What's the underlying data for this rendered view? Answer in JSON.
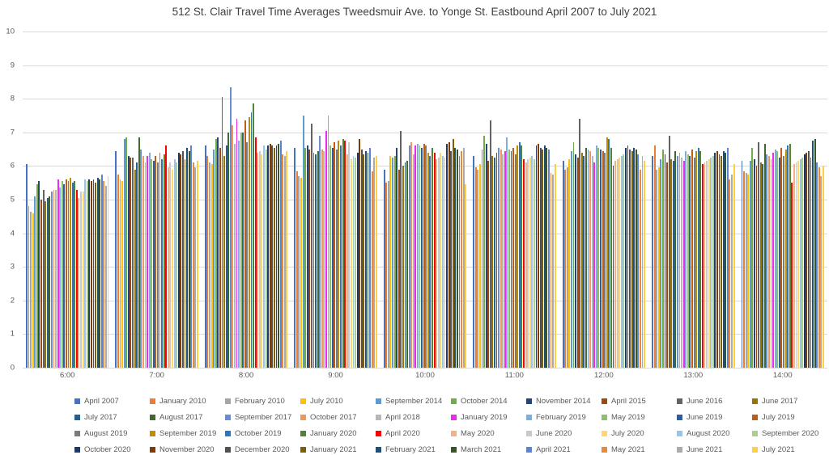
{
  "colors": {
    "background": "#ffffff",
    "gridline": "#d9d9d9",
    "axis_text": "#595959",
    "title_text": "#404040"
  },
  "chart_data": {
    "type": "bar",
    "title": "512 St. Clair Travel Time Averages Tweedsmuir Ave. to Yonge St. Eastbound April 2007 to July 2021",
    "xlabel": "",
    "ylabel": "",
    "ylim": [
      0,
      10
    ],
    "yticks": [
      0,
      1,
      2,
      3,
      4,
      5,
      6,
      7,
      8,
      9,
      10
    ],
    "grid": true,
    "legend_position": "bottom",
    "categories": [
      "6:00",
      "7:00",
      "8:00",
      "9:00",
      "10:00",
      "11:00",
      "12:00",
      "13:00",
      "14:00"
    ],
    "series": [
      {
        "name": "April 2007",
        "color": "#4472C4",
        "values": [
          6.05,
          6.45,
          6.6,
          6.55,
          5.9,
          6.3,
          6.15,
          6.3,
          6.15
        ]
      },
      {
        "name": "January 2010",
        "color": "#ED7D31",
        "values": [
          4.8,
          5.75,
          6.3,
          5.85,
          5.5,
          5.95,
          5.9,
          6.6,
          5.85
        ]
      },
      {
        "name": "February 2010",
        "color": "#A5A5A5",
        "values": [
          4.65,
          5.6,
          6.1,
          5.7,
          5.55,
          5.9,
          5.95,
          5.9,
          5.8
        ]
      },
      {
        "name": "July 2010",
        "color": "#FFC000",
        "values": [
          4.6,
          5.55,
          6.05,
          5.65,
          6.3,
          6.05,
          6.2,
          5.95,
          5.75
        ]
      },
      {
        "name": "September 2014",
        "color": "#5B9BD5",
        "values": [
          5.1,
          6.8,
          6.5,
          7.5,
          6.25,
          6.5,
          6.45,
          6.2,
          6.15
        ]
      },
      {
        "name": "October 2014",
        "color": "#70AD47",
        "values": [
          5.45,
          6.85,
          6.8,
          6.55,
          6.3,
          6.9,
          6.7,
          6.5,
          6.55
        ]
      },
      {
        "name": "November 2014",
        "color": "#264478",
        "values": [
          5.55,
          6.3,
          6.85,
          6.6,
          6.55,
          6.65,
          6.35,
          6.35,
          6.2
        ]
      },
      {
        "name": "April 2015",
        "color": "#9E480E",
        "values": [
          5.0,
          6.25,
          6.55,
          6.5,
          5.9,
          6.15,
          6.25,
          6.1,
          6.0
        ]
      },
      {
        "name": "June 2016",
        "color": "#636363",
        "values": [
          5.3,
          6.25,
          8.05,
          7.25,
          7.05,
          7.35,
          7.4,
          6.9,
          6.7
        ]
      },
      {
        "name": "June 2017",
        "color": "#997300",
        "values": [
          4.95,
          5.9,
          6.3,
          6.4,
          6.0,
          6.3,
          6.4,
          6.2,
          6.1
        ]
      },
      {
        "name": "July 2017",
        "color": "#255E91",
        "values": [
          5.05,
          6.1,
          6.6,
          6.35,
          6.1,
          6.25,
          6.3,
          6.15,
          6.05
        ]
      },
      {
        "name": "August 2017",
        "color": "#43682B",
        "values": [
          5.1,
          6.85,
          7.0,
          6.45,
          6.15,
          6.4,
          6.55,
          6.45,
          6.65
        ]
      },
      {
        "name": "September 2017",
        "color": "#698ED0",
        "values": [
          5.25,
          6.5,
          8.35,
          6.9,
          6.6,
          6.55,
          6.5,
          6.3,
          6.35
        ]
      },
      {
        "name": "October 2017",
        "color": "#F1975A",
        "values": [
          5.3,
          6.3,
          7.2,
          6.5,
          6.7,
          6.5,
          6.45,
          6.4,
          6.3
        ]
      },
      {
        "name": "April 2018",
        "color": "#B7B7B7",
        "values": [
          5.3,
          6.1,
          6.65,
          6.45,
          6.35,
          6.35,
          6.3,
          6.25,
          6.2
        ]
      },
      {
        "name": "January 2019",
        "color": "#EE28EE",
        "values": [
          5.6,
          6.3,
          7.4,
          7.05,
          6.6,
          6.45,
          6.1,
          6.15,
          6.4
        ]
      },
      {
        "name": "February 2019",
        "color": "#7CAFDD",
        "values": [
          5.35,
          6.4,
          6.75,
          7.5,
          6.65,
          6.85,
          6.6,
          6.45,
          6.5
        ]
      },
      {
        "name": "May 2019",
        "color": "#8CC168",
        "values": [
          5.55,
          6.2,
          7.0,
          6.6,
          6.6,
          6.5,
          6.55,
          6.35,
          6.45
        ]
      },
      {
        "name": "June 2019",
        "color": "#2F5C9F",
        "values": [
          5.45,
          6.15,
          7.0,
          6.55,
          6.55,
          6.45,
          6.5,
          6.3,
          6.25
        ]
      },
      {
        "name": "July 2019",
        "color": "#C55A11",
        "values": [
          5.6,
          6.3,
          7.35,
          6.7,
          6.65,
          6.55,
          6.45,
          6.5,
          6.55
        ]
      },
      {
        "name": "August 2019",
        "color": "#7B7B7B",
        "values": [
          5.55,
          6.1,
          6.7,
          6.5,
          6.6,
          6.35,
          6.4,
          6.25,
          6.3
        ]
      },
      {
        "name": "September 2019",
        "color": "#BF8F00",
        "values": [
          5.65,
          6.4,
          7.45,
          6.75,
          6.4,
          6.6,
          6.85,
          6.45,
          6.5
        ]
      },
      {
        "name": "October 2019",
        "color": "#2E75B6",
        "values": [
          5.5,
          6.2,
          7.6,
          6.6,
          6.3,
          6.7,
          6.8,
          6.55,
          6.6
        ]
      },
      {
        "name": "January 2020",
        "color": "#548235",
        "values": [
          5.55,
          6.35,
          7.85,
          6.8,
          6.55,
          6.6,
          6.55,
          6.45,
          6.65
        ]
      },
      {
        "name": "April 2020",
        "color": "#FF0000",
        "values": [
          5.3,
          6.6,
          6.85,
          6.75,
          6.4,
          6.2,
          6.0,
          6.05,
          5.5
        ]
      },
      {
        "name": "May 2020",
        "color": "#F4B183",
        "values": [
          5.05,
          5.95,
          6.4,
          6.35,
          6.2,
          6.1,
          6.15,
          6.1,
          6.05
        ]
      },
      {
        "name": "June 2020",
        "color": "#C9C9C9",
        "values": [
          5.25,
          6.1,
          6.45,
          6.7,
          6.25,
          6.2,
          6.2,
          6.15,
          6.1
        ]
      },
      {
        "name": "July 2020",
        "color": "#FFD966",
        "values": [
          5.25,
          5.9,
          6.35,
          6.2,
          6.4,
          6.25,
          6.25,
          6.2,
          6.15
        ]
      },
      {
        "name": "August 2020",
        "color": "#9DC3E6",
        "values": [
          5.6,
          6.2,
          6.6,
          6.3,
          6.3,
          6.3,
          6.3,
          6.25,
          6.2
        ]
      },
      {
        "name": "September 2020",
        "color": "#A9D18E",
        "values": [
          5.55,
          6.1,
          6.5,
          6.25,
          6.25,
          6.2,
          6.35,
          6.3,
          6.25
        ]
      },
      {
        "name": "October 2020",
        "color": "#1F3864",
        "values": [
          5.6,
          6.4,
          6.6,
          6.4,
          6.65,
          6.6,
          6.55,
          6.4,
          6.35
        ]
      },
      {
        "name": "November 2020",
        "color": "#833C00",
        "values": [
          5.55,
          6.35,
          6.65,
          6.8,
          6.7,
          6.65,
          6.6,
          6.45,
          6.4
        ]
      },
      {
        "name": "December 2020",
        "color": "#525252",
        "values": [
          5.6,
          6.45,
          6.6,
          6.5,
          6.45,
          6.55,
          6.5,
          6.35,
          6.45
        ]
      },
      {
        "name": "January 2021",
        "color": "#7F6000",
        "values": [
          5.5,
          6.2,
          6.55,
          6.35,
          6.8,
          6.5,
          6.45,
          6.3,
          6.25
        ]
      },
      {
        "name": "February 2021",
        "color": "#1F4E79",
        "values": [
          5.65,
          6.55,
          6.6,
          6.45,
          6.55,
          6.6,
          6.55,
          6.45,
          6.75
        ]
      },
      {
        "name": "March 2021",
        "color": "#375623",
        "values": [
          5.6,
          6.45,
          6.65,
          6.4,
          6.5,
          6.55,
          6.5,
          6.4,
          6.8
        ]
      },
      {
        "name": "April 2021",
        "color": "#5B84D1",
        "values": [
          5.75,
          6.6,
          6.75,
          6.55,
          6.3,
          6.5,
          6.35,
          6.55,
          6.1
        ]
      },
      {
        "name": "May 2021",
        "color": "#EF8733",
        "values": [
          5.55,
          6.1,
          6.35,
          5.85,
          6.45,
          5.8,
          5.9,
          5.6,
          5.95
        ]
      },
      {
        "name": "June 2021",
        "color": "#ABABAB",
        "values": [
          5.4,
          5.95,
          6.3,
          6.25,
          6.55,
          5.75,
          6.3,
          5.75,
          5.7
        ]
      },
      {
        "name": "July 2021",
        "color": "#FFCF40",
        "values": [
          5.7,
          6.15,
          6.45,
          6.3,
          5.45,
          6.05,
          6.15,
          6.05,
          6.0
        ]
      }
    ]
  }
}
